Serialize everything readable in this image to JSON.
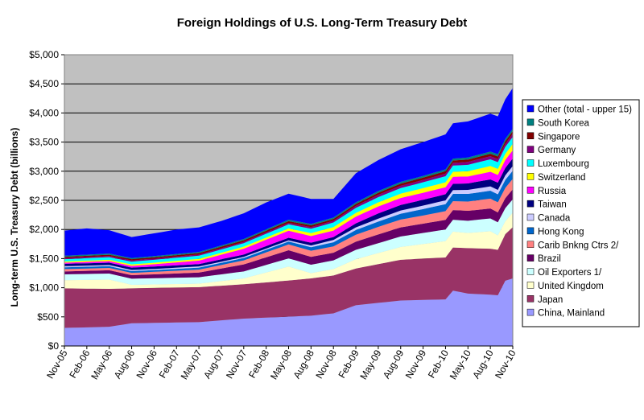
{
  "chart_data": {
    "type": "area",
    "stacked": true,
    "title": "Foreign Holdings of U.S. Long-Term Treasury Debt",
    "xlabel": "",
    "ylabel": "Long-term U.S. Treasury Debt (billions)",
    "ylim": [
      0,
      5000
    ],
    "yticks": [
      "$0",
      "$500",
      "$1,000",
      "$1,500",
      "$2,000",
      "$2,500",
      "$3,000",
      "$3,500",
      "$4,000",
      "$4,500",
      "$5,000"
    ],
    "ytick_values": [
      0,
      500,
      1000,
      1500,
      2000,
      2500,
      3000,
      3500,
      4000,
      4500,
      5000
    ],
    "x_tick_labels": [
      "Nov-05",
      "Feb-06",
      "May-06",
      "Aug-06",
      "Nov-06",
      "Feb-07",
      "May-07",
      "Aug-07",
      "Nov-07",
      "Feb-08",
      "May-08",
      "Aug-08",
      "Nov-08",
      "Feb-09",
      "May-09",
      "Aug-09",
      "Nov-09",
      "Feb-10",
      "May-10",
      "Aug-10",
      "Nov-10"
    ],
    "grid": "horizontal",
    "plot_background": "#c0c0c0",
    "legend_position": "right",
    "x_count": 61,
    "series_bottom_to_top": [
      {
        "name": "China, Mainland",
        "color": "#9999ff",
        "knots": [
          [
            0,
            310
          ],
          [
            6,
            330
          ],
          [
            9,
            390
          ],
          [
            18,
            410
          ],
          [
            24,
            470
          ],
          [
            33,
            520
          ],
          [
            36,
            560
          ],
          [
            39,
            700
          ],
          [
            45,
            780
          ],
          [
            51,
            800
          ],
          [
            52,
            950
          ],
          [
            54,
            900
          ],
          [
            57,
            880
          ],
          [
            58,
            870
          ],
          [
            59,
            1120
          ],
          [
            60,
            1160
          ]
        ]
      },
      {
        "name": "Japan",
        "color": "#993366",
        "knots": [
          [
            0,
            680
          ],
          [
            6,
            650
          ],
          [
            9,
            600
          ],
          [
            18,
            600
          ],
          [
            24,
            590
          ],
          [
            30,
            620
          ],
          [
            33,
            640
          ],
          [
            36,
            650
          ],
          [
            39,
            630
          ],
          [
            45,
            700
          ],
          [
            51,
            720
          ],
          [
            54,
            780
          ],
          [
            57,
            790
          ],
          [
            58,
            780
          ],
          [
            59,
            800
          ],
          [
            60,
            880
          ]
        ]
      },
      {
        "name": "United Kingdom",
        "color": "#ffffcc",
        "knots": [
          [
            0,
            140
          ],
          [
            6,
            160
          ],
          [
            9,
            60
          ],
          [
            18,
            60
          ],
          [
            24,
            100
          ],
          [
            30,
            240
          ],
          [
            33,
            90
          ],
          [
            36,
            110
          ],
          [
            39,
            160
          ],
          [
            45,
            220
          ],
          [
            51,
            280
          ],
          [
            54,
            260
          ],
          [
            57,
            300
          ],
          [
            58,
            250
          ],
          [
            59,
            220
          ],
          [
            60,
            250
          ]
        ]
      },
      {
        "name": "Oil Exporters 1/",
        "color": "#ccffff",
        "knots": [
          [
            0,
            100
          ],
          [
            18,
            110
          ],
          [
            24,
            120
          ],
          [
            30,
            140
          ],
          [
            36,
            150
          ],
          [
            42,
            170
          ],
          [
            48,
            190
          ],
          [
            54,
            210
          ],
          [
            60,
            230
          ]
        ]
      },
      {
        "name": "Brazil",
        "color": "#660066",
        "knots": [
          [
            0,
            50
          ],
          [
            9,
            60
          ],
          [
            18,
            80
          ],
          [
            24,
            120
          ],
          [
            30,
            140
          ],
          [
            36,
            130
          ],
          [
            42,
            150
          ],
          [
            48,
            160
          ],
          [
            54,
            170
          ],
          [
            60,
            170
          ]
        ]
      },
      {
        "name": "Carib Bnkng Ctrs 2/",
        "color": "#ff8080",
        "knots": [
          [
            0,
            40
          ],
          [
            9,
            40
          ],
          [
            18,
            50
          ],
          [
            24,
            70
          ],
          [
            30,
            100
          ],
          [
            36,
            110
          ],
          [
            42,
            130
          ],
          [
            48,
            140
          ],
          [
            54,
            160
          ],
          [
            60,
            180
          ]
        ]
      },
      {
        "name": "Hong Kong",
        "color": "#0066cc",
        "knots": [
          [
            0,
            30
          ],
          [
            12,
            30
          ],
          [
            24,
            40
          ],
          [
            30,
            50
          ],
          [
            36,
            70
          ],
          [
            42,
            90
          ],
          [
            48,
            110
          ],
          [
            54,
            130
          ],
          [
            60,
            140
          ]
        ]
      },
      {
        "name": "Canada",
        "color": "#ccccff",
        "knots": [
          [
            0,
            20
          ],
          [
            18,
            20
          ],
          [
            30,
            20
          ],
          [
            36,
            40
          ],
          [
            42,
            50
          ],
          [
            48,
            60
          ],
          [
            54,
            70
          ],
          [
            60,
            80
          ]
        ]
      },
      {
        "name": "Taiwan",
        "color": "#000080",
        "knots": [
          [
            0,
            40
          ],
          [
            12,
            40
          ],
          [
            24,
            40
          ],
          [
            36,
            50
          ],
          [
            42,
            90
          ],
          [
            48,
            100
          ],
          [
            54,
            110
          ],
          [
            60,
            130
          ]
        ]
      },
      {
        "name": "Russia",
        "color": "#ff00ff",
        "knots": [
          [
            0,
            20
          ],
          [
            9,
            30
          ],
          [
            18,
            60
          ],
          [
            24,
            100
          ],
          [
            30,
            120
          ],
          [
            36,
            110
          ],
          [
            42,
            120
          ],
          [
            48,
            120
          ],
          [
            54,
            120
          ],
          [
            60,
            140
          ]
        ]
      },
      {
        "name": "Switzerland",
        "color": "#ffff00",
        "knots": [
          [
            0,
            20
          ],
          [
            18,
            30
          ],
          [
            30,
            40
          ],
          [
            36,
            60
          ],
          [
            42,
            70
          ],
          [
            48,
            80
          ],
          [
            54,
            90
          ],
          [
            60,
            110
          ]
        ]
      },
      {
        "name": "Luxembourg",
        "color": "#00ffff",
        "knots": [
          [
            0,
            40
          ],
          [
            12,
            50
          ],
          [
            24,
            60
          ],
          [
            30,
            70
          ],
          [
            36,
            80
          ],
          [
            42,
            90
          ],
          [
            48,
            100
          ],
          [
            54,
            110
          ],
          [
            60,
            120
          ]
        ]
      },
      {
        "name": "Germany",
        "color": "#800080",
        "knots": [
          [
            0,
            20
          ],
          [
            18,
            20
          ],
          [
            30,
            25
          ],
          [
            36,
            30
          ],
          [
            42,
            40
          ],
          [
            48,
            40
          ],
          [
            54,
            50
          ],
          [
            60,
            55
          ]
        ]
      },
      {
        "name": "Singapore",
        "color": "#800000",
        "knots": [
          [
            0,
            20
          ],
          [
            18,
            25
          ],
          [
            30,
            30
          ],
          [
            36,
            30
          ],
          [
            42,
            35
          ],
          [
            48,
            40
          ],
          [
            54,
            40
          ],
          [
            60,
            45
          ]
        ]
      },
      {
        "name": "South Korea",
        "color": "#008080",
        "knots": [
          [
            0,
            20
          ],
          [
            18,
            20
          ],
          [
            30,
            25
          ],
          [
            36,
            25
          ],
          [
            42,
            30
          ],
          [
            48,
            30
          ],
          [
            54,
            35
          ],
          [
            60,
            40
          ]
        ]
      },
      {
        "name": "Other (total - upper 15)",
        "color": "#0000ff",
        "knots": [
          [
            0,
            430
          ],
          [
            3,
            450
          ],
          [
            6,
            400
          ],
          [
            9,
            360
          ],
          [
            15,
            420
          ],
          [
            21,
            420
          ],
          [
            27,
            460
          ],
          [
            33,
            430
          ],
          [
            36,
            320
          ],
          [
            39,
            500
          ],
          [
            45,
            560
          ],
          [
            51,
            600
          ],
          [
            54,
            620
          ],
          [
            57,
            650
          ],
          [
            58,
            650
          ],
          [
            59,
            680
          ],
          [
            60,
            700
          ]
        ]
      }
    ]
  }
}
